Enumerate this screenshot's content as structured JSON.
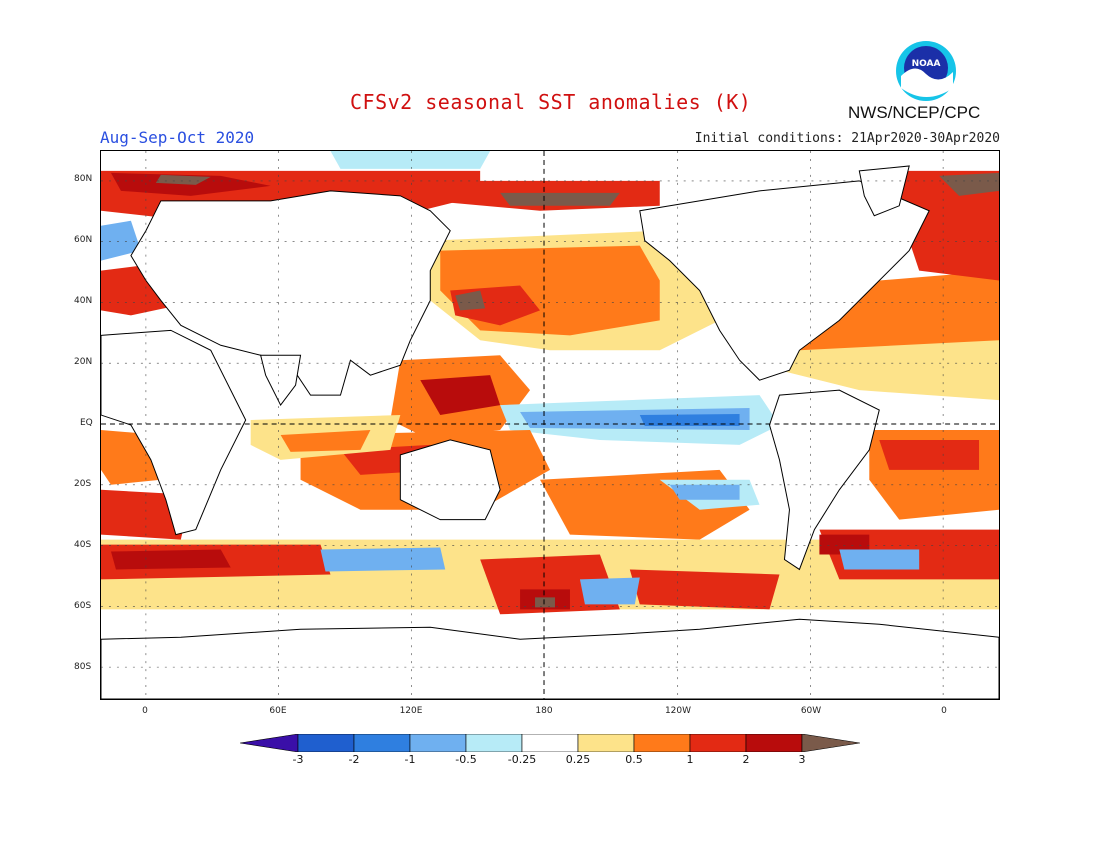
{
  "header": {
    "title": "CFSv2 seasonal SST anomalies (K)",
    "season": "Aug-Sep-Oct 2020",
    "initial_conditions": "Initial conditions: 21Apr2020-30Apr2020",
    "agency": "NWS/NCEP/CPC",
    "logo_text": "NOAA"
  },
  "map": {
    "lat_labels": [
      "80N",
      "60N",
      "40N",
      "20N",
      "EQ",
      "20S",
      "40S",
      "60S",
      "80S"
    ],
    "lon_labels": [
      "0",
      "60E",
      "120E",
      "180",
      "120W",
      "60W",
      "0"
    ]
  },
  "colorbar": {
    "labels": [
      "-3",
      "-2",
      "-1",
      "-0.5",
      "-0.25",
      "0.25",
      "0.5",
      "1",
      "2",
      "3"
    ],
    "colors": {
      "lt_m3": "#3a0fa8",
      "m3_m2": "#1f5fcf",
      "m2_m1": "#2f7fe0",
      "m1_m05": "#6fb0f0",
      "m05_m025": "#b7ebf7",
      "neutral": "#ffffff",
      "p025_p05": "#fde38a",
      "p05_p1": "#ff7a1a",
      "p1_p2": "#e32a14",
      "p2_p3": "#b80c0c",
      "gt_p3": "#7a5a4a"
    }
  }
}
